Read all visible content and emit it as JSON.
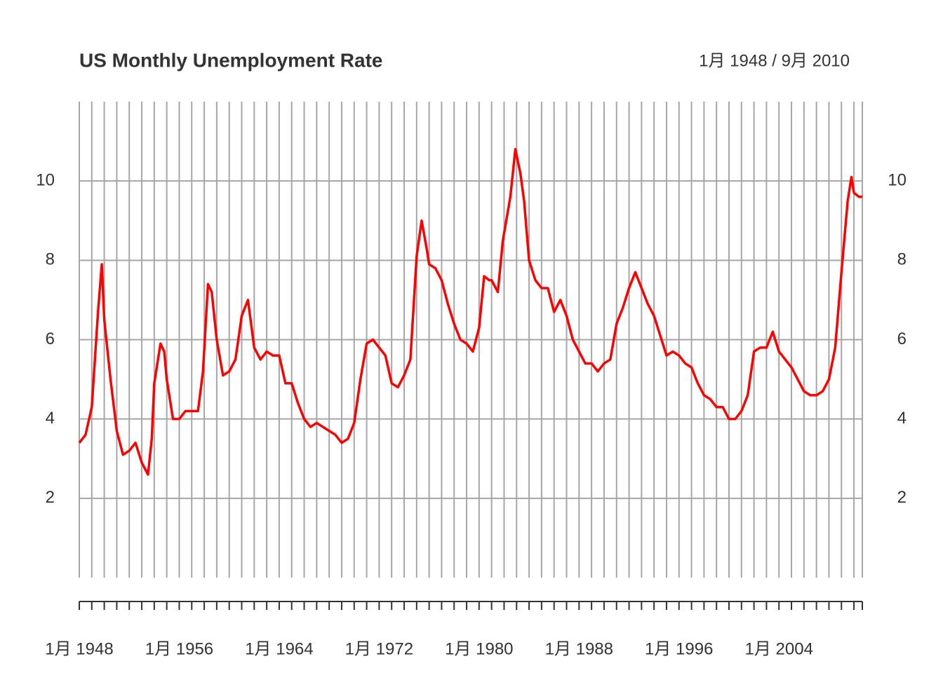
{
  "chart_data": {
    "type": "line",
    "title": "US Monthly Unemployment Rate",
    "subtitle": "1月 1948 / 9月 2010",
    "x": [
      1948.0,
      1948.5,
      1949.0,
      1949.5,
      1949.8,
      1950.0,
      1950.5,
      1951.0,
      1951.5,
      1952.0,
      1952.5,
      1953.0,
      1953.5,
      1953.8,
      1954.0,
      1954.5,
      1954.8,
      1955.0,
      1955.5,
      1956.0,
      1956.5,
      1957.0,
      1957.5,
      1957.9,
      1958.3,
      1958.6,
      1959.0,
      1959.5,
      1960.0,
      1960.5,
      1961.0,
      1961.5,
      1962.0,
      1962.5,
      1963.0,
      1963.5,
      1964.0,
      1964.5,
      1965.0,
      1965.5,
      1966.0,
      1966.5,
      1967.0,
      1967.5,
      1968.0,
      1968.5,
      1969.0,
      1969.5,
      1970.0,
      1970.5,
      1971.0,
      1971.5,
      1972.0,
      1972.5,
      1973.0,
      1973.5,
      1974.0,
      1974.5,
      1975.0,
      1975.4,
      1975.8,
      1976.0,
      1976.5,
      1977.0,
      1977.5,
      1978.0,
      1978.5,
      1979.0,
      1979.5,
      1980.0,
      1980.4,
      1980.8,
      1981.0,
      1981.5,
      1981.9,
      1982.5,
      1982.9,
      1983.3,
      1983.6,
      1984.0,
      1984.5,
      1985.0,
      1985.5,
      1986.0,
      1986.5,
      1987.0,
      1987.5,
      1988.0,
      1988.5,
      1989.0,
      1989.5,
      1990.0,
      1990.5,
      1991.0,
      1991.5,
      1992.0,
      1992.5,
      1993.0,
      1993.5,
      1994.0,
      1994.5,
      1995.0,
      1995.5,
      1996.0,
      1996.5,
      1997.0,
      1997.5,
      1998.0,
      1998.5,
      1999.0,
      1999.5,
      2000.0,
      2000.5,
      2001.0,
      2001.5,
      2002.0,
      2002.5,
      2003.0,
      2003.5,
      2004.0,
      2004.5,
      2005.0,
      2005.5,
      2006.0,
      2006.5,
      2007.0,
      2007.5,
      2008.0,
      2008.5,
      2009.0,
      2009.5,
      2009.8,
      2010.0,
      2010.4,
      2010.67
    ],
    "series": [
      {
        "name": "Unemployment Rate",
        "color": "#ff0000",
        "values": [
          3.4,
          3.6,
          4.3,
          6.7,
          7.9,
          6.5,
          5.0,
          3.7,
          3.1,
          3.2,
          3.4,
          2.9,
          2.6,
          3.5,
          4.9,
          5.9,
          5.7,
          5.0,
          4.0,
          4.0,
          4.2,
          4.2,
          4.2,
          5.2,
          7.4,
          7.2,
          6.0,
          5.1,
          5.2,
          5.5,
          6.6,
          7.0,
          5.8,
          5.5,
          5.7,
          5.6,
          5.6,
          4.9,
          4.9,
          4.4,
          4.0,
          3.8,
          3.9,
          3.8,
          3.7,
          3.6,
          3.4,
          3.5,
          3.9,
          5.0,
          5.9,
          6.0,
          5.8,
          5.6,
          4.9,
          4.8,
          5.1,
          5.5,
          8.1,
          9.0,
          8.3,
          7.9,
          7.8,
          7.5,
          6.9,
          6.4,
          6.0,
          5.9,
          5.7,
          6.3,
          7.6,
          7.5,
          7.5,
          7.2,
          8.5,
          9.6,
          10.8,
          10.2,
          9.5,
          8.0,
          7.5,
          7.3,
          7.3,
          6.7,
          7.0,
          6.6,
          6.0,
          5.7,
          5.4,
          5.4,
          5.2,
          5.4,
          5.5,
          6.4,
          6.8,
          7.3,
          7.7,
          7.3,
          6.9,
          6.6,
          6.1,
          5.6,
          5.7,
          5.6,
          5.4,
          5.3,
          4.9,
          4.6,
          4.5,
          4.3,
          4.3,
          4.0,
          4.0,
          4.2,
          4.6,
          5.7,
          5.8,
          5.8,
          6.2,
          5.7,
          5.5,
          5.3,
          5.0,
          4.7,
          4.6,
          4.6,
          4.7,
          5.0,
          5.8,
          7.7,
          9.5,
          10.1,
          9.7,
          9.6,
          9.6
        ]
      }
    ],
    "xlim": [
      1948,
      2010.67
    ],
    "xticks": [
      {
        "value": 1948,
        "label": "1月 1948"
      },
      {
        "value": 1956,
        "label": "1月 1956"
      },
      {
        "value": 1964,
        "label": "1月 1964"
      },
      {
        "value": 1972,
        "label": "1月 1972"
      },
      {
        "value": 1980,
        "label": "1月 1980"
      },
      {
        "value": 1988,
        "label": "1月 1988"
      },
      {
        "value": 1996,
        "label": "1月 1996"
      },
      {
        "value": 2004,
        "label": "1月 2004"
      }
    ],
    "minor_xticks": [
      1948,
      1949,
      1950,
      1951,
      1952,
      1953,
      1954,
      1955,
      1956,
      1957,
      1958,
      1959,
      1960,
      1961,
      1962,
      1963,
      1964,
      1965,
      1966,
      1967,
      1968,
      1969,
      1970,
      1971,
      1972,
      1973,
      1974,
      1975,
      1976,
      1977,
      1978,
      1979,
      1980,
      1981,
      1982,
      1983,
      1984,
      1985,
      1986,
      1987,
      1988,
      1989,
      1990,
      1991,
      1992,
      1993,
      1994,
      1995,
      1996,
      1997,
      1998,
      1999,
      2000,
      2001,
      2002,
      2003,
      2004,
      2005,
      2006,
      2007,
      2008,
      2009,
      2010
    ],
    "ylim": [
      0,
      12
    ],
    "yticks": [
      2,
      4,
      6,
      8,
      10
    ],
    "grid": true
  }
}
